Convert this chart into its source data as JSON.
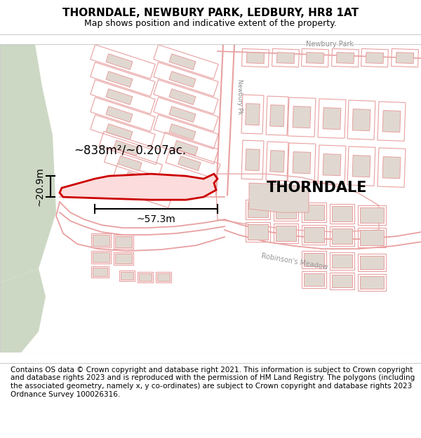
{
  "title": "THORNDALE, NEWBURY PARK, LEDBURY, HR8 1AT",
  "subtitle": "Map shows position and indicative extent of the property.",
  "property_label": "THORNDALE",
  "area_label": "~838m²/~0.207ac.",
  "width_label": "~57.3m",
  "height_label": "~20.9m",
  "footer": "Contains OS data © Crown copyright and database right 2021. This information is subject to Crown copyright and database rights 2023 and is reproduced with the permission of HM Land Registry. The polygons (including the associated geometry, namely x, y co-ordinates) are subject to Crown copyright and database rights 2023 Ordnance Survey 100026316.",
  "map_bg": "#f7f3ef",
  "building_fill": "#e0d8d0",
  "building_outline": "#e8a0a0",
  "green_color": "#ccd8c4",
  "road_line_color": "#e8a0a0",
  "property_outline_color": "#cc0000",
  "property_fill_color": "#fcdcdc",
  "road_bg_color": "#f7f3ef",
  "title_fontsize": 11,
  "subtitle_fontsize": 9,
  "footer_fontsize": 7.5
}
